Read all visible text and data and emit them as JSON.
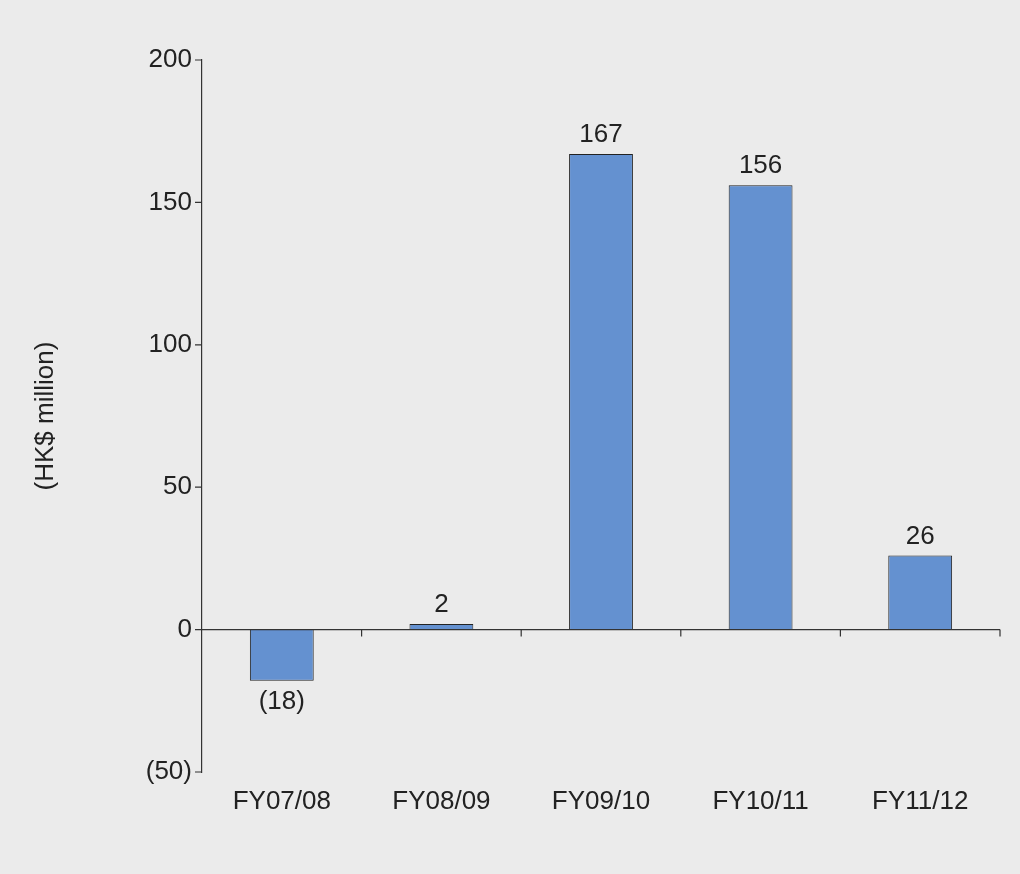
{
  "chart_data": {
    "type": "bar",
    "ylabel": "(HK$ million)",
    "categories": [
      "FY07/08",
      "FY08/09",
      "FY09/10",
      "FY10/11",
      "FY11/12"
    ],
    "values": [
      -18,
      2,
      167,
      156,
      26
    ],
    "value_labels": [
      "(18)",
      "2",
      "167",
      "156",
      "26"
    ],
    "color": "#6491d0",
    "ylim": [
      -50,
      200
    ],
    "yticks": [
      {
        "value": -50,
        "label": "(50)"
      },
      0,
      50,
      100,
      150,
      200
    ],
    "legend": false
  }
}
